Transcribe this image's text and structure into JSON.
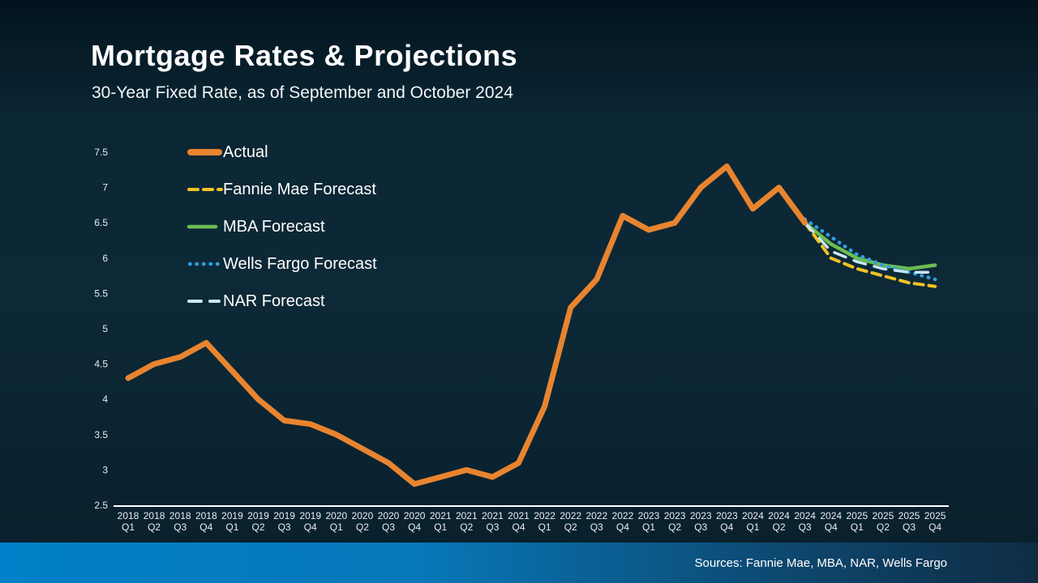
{
  "header": {
    "title": "Mortgage Rates & Projections",
    "subtitle": "30-Year Fixed Rate, as of September and October 2024"
  },
  "footer": {
    "sources": "Sources: Fannie Mae, MBA, NAR, Wells Fargo"
  },
  "colors": {
    "background": "#0d2937",
    "footer_blue": "#0080c8",
    "axis_line": "#ffffff",
    "tick_text": "#e9eef2"
  },
  "chart_data": {
    "type": "line",
    "title": "Mortgage Rates & Projections",
    "subtitle": "30-Year Fixed Rate, as of September and October 2024",
    "xlabel": "",
    "ylabel": "",
    "ylim": [
      2.5,
      7.5
    ],
    "grid": false,
    "legend_position": "top-left-inside",
    "y_ticks": [
      "2.5",
      "3",
      "3.5",
      "4",
      "4.5",
      "5",
      "5.5",
      "6",
      "6.5",
      "7",
      "7.5"
    ],
    "categories": [
      "2018 Q1",
      "2018 Q2",
      "2018 Q3",
      "2018 Q4",
      "2019 Q1",
      "2019 Q2",
      "2019 Q3",
      "2019 Q4",
      "2020 Q1",
      "2020 Q2",
      "2020 Q3",
      "2020 Q4",
      "2021 Q1",
      "2021 Q2",
      "2021 Q3",
      "2021 Q4",
      "2022 Q1",
      "2022 Q2",
      "2022 Q3",
      "2022 Q4",
      "2023 Q1",
      "2023 Q2",
      "2023 Q3",
      "2023 Q4",
      "2024 Q1",
      "2024 Q2",
      "2024 Q3",
      "2024 Q4",
      "2025 Q1",
      "2025 Q2",
      "2025 Q3",
      "2025 Q4"
    ],
    "series": [
      {
        "name": "Actual",
        "color": "#e8842f",
        "style": "solid",
        "width": 7,
        "values": [
          4.3,
          4.5,
          4.6,
          4.8,
          4.4,
          4.0,
          3.7,
          3.65,
          3.5,
          3.3,
          3.1,
          2.8,
          2.9,
          3.0,
          2.9,
          3.1,
          3.9,
          5.3,
          5.7,
          6.6,
          6.4,
          6.5,
          7.0,
          7.3,
          6.7,
          7.0,
          6.5,
          null,
          null,
          null,
          null,
          null
        ]
      },
      {
        "name": "Fannie Mae Forecast",
        "color": "#f2c124",
        "style": "dashed",
        "width": 4,
        "values": [
          null,
          null,
          null,
          null,
          null,
          null,
          null,
          null,
          null,
          null,
          null,
          null,
          null,
          null,
          null,
          null,
          null,
          null,
          null,
          null,
          null,
          null,
          null,
          null,
          null,
          null,
          6.5,
          6.0,
          5.85,
          5.75,
          5.65,
          5.6
        ]
      },
      {
        "name": "MBA Forecast",
        "color": "#6cbc52",
        "style": "solid",
        "width": 4.5,
        "values": [
          null,
          null,
          null,
          null,
          null,
          null,
          null,
          null,
          null,
          null,
          null,
          null,
          null,
          null,
          null,
          null,
          null,
          null,
          null,
          null,
          null,
          null,
          null,
          null,
          null,
          null,
          6.5,
          6.2,
          6.0,
          5.9,
          5.85,
          5.9
        ]
      },
      {
        "name": "Wells Fargo Forecast",
        "color": "#2d9fe0",
        "style": "dotted",
        "width": 4.5,
        "values": [
          null,
          null,
          null,
          null,
          null,
          null,
          null,
          null,
          null,
          null,
          null,
          null,
          null,
          null,
          null,
          null,
          null,
          null,
          null,
          null,
          null,
          null,
          null,
          null,
          null,
          null,
          6.55,
          6.3,
          6.05,
          5.9,
          5.8,
          5.7
        ]
      },
      {
        "name": "NAR Forecast",
        "color": "#c5e8f7",
        "style": "long-dash",
        "width": 3.5,
        "values": [
          null,
          null,
          null,
          null,
          null,
          null,
          null,
          null,
          null,
          null,
          null,
          null,
          null,
          null,
          null,
          null,
          null,
          null,
          null,
          null,
          null,
          null,
          null,
          null,
          null,
          null,
          6.5,
          6.1,
          5.95,
          5.85,
          5.8,
          5.8
        ]
      }
    ]
  }
}
